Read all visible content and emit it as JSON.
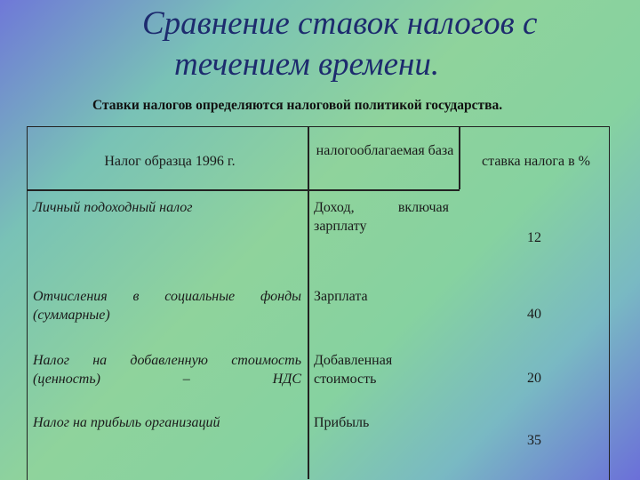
{
  "title": {
    "line1": "Сравнение ставок налогов с",
    "line2": "течением времени."
  },
  "subtitle": "Ставки налогов определяются налоговой политикой государства.",
  "table": {
    "headers": {
      "tax": "Налог образца 1996 г.",
      "base": "налогооблагаемая база",
      "rate": "ставка налога в %"
    },
    "rows": [
      {
        "tax": "Личный подоходный налог",
        "base": "Доход, включая зарплату",
        "rate": "12"
      },
      {
        "tax": "Отчисления в социальные фонды (суммарные)",
        "base": "Зарплата",
        "rate": "40"
      },
      {
        "tax": "Налог на добавленную стоимость (ценность) – НДС",
        "base": "Добавленная стоимость",
        "rate": "20"
      },
      {
        "tax": "Налог на прибыль организаций",
        "base": "Прибыль",
        "rate": "35"
      }
    ]
  }
}
